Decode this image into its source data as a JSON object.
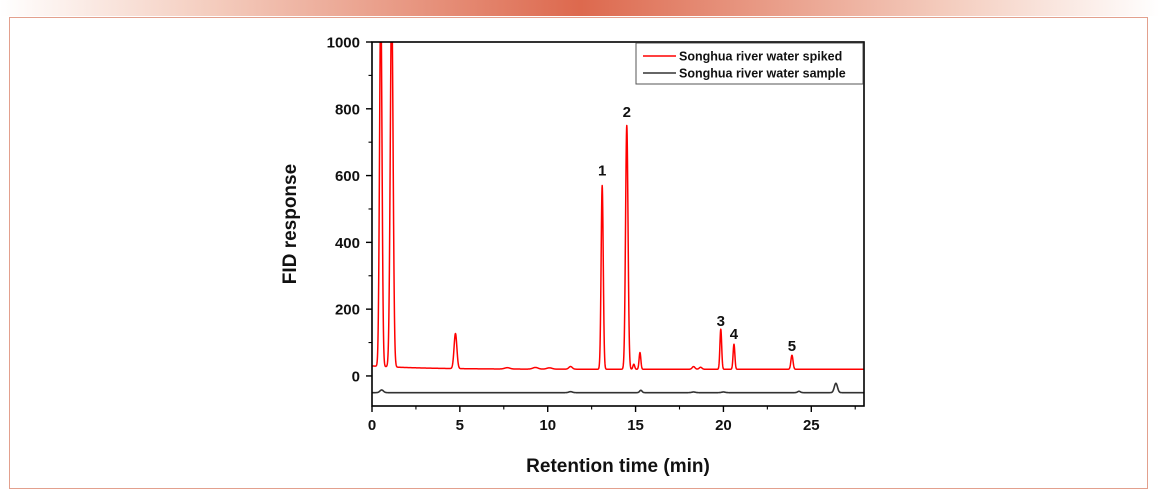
{
  "chart_data": {
    "type": "line",
    "title": "",
    "xlabel": "Retention time (min)",
    "ylabel": "FID response",
    "xlim": [
      0,
      28
    ],
    "ylim": [
      -90,
      1000
    ],
    "x_ticks": [
      0,
      5,
      10,
      15,
      20,
      25
    ],
    "y_ticks": [
      0,
      200,
      400,
      600,
      800,
      1000
    ],
    "grid": false,
    "legend_position": "top-right",
    "series": [
      {
        "name": "Songhua river water spiked",
        "color": "#ff0000",
        "baseline": 20,
        "baseline_start": 30,
        "peaks": [
          {
            "t": 0.5,
            "height": 1100,
            "width": 0.07
          },
          {
            "t": 1.12,
            "height": 1100,
            "width": 0.08
          },
          {
            "t": 4.75,
            "height": 105,
            "width": 0.08
          },
          {
            "t": 7.7,
            "height": 4,
            "width": 0.15
          },
          {
            "t": 9.3,
            "height": 5,
            "width": 0.15
          },
          {
            "t": 10.1,
            "height": 4,
            "width": 0.15
          },
          {
            "t": 11.3,
            "height": 8,
            "width": 0.1
          },
          {
            "t": 13.1,
            "height": 550,
            "width": 0.06
          },
          {
            "t": 14.5,
            "height": 730,
            "width": 0.07
          },
          {
            "t": 14.9,
            "height": 15,
            "width": 0.05
          },
          {
            "t": 15.25,
            "height": 50,
            "width": 0.05
          },
          {
            "t": 18.3,
            "height": 8,
            "width": 0.08
          },
          {
            "t": 18.7,
            "height": 6,
            "width": 0.08
          },
          {
            "t": 19.85,
            "height": 120,
            "width": 0.05
          },
          {
            "t": 20.6,
            "height": 75,
            "width": 0.05
          },
          {
            "t": 23.9,
            "height": 42,
            "width": 0.06
          }
        ]
      },
      {
        "name": "Songhua river water sample",
        "color": "#333333",
        "baseline": -50,
        "peaks": [
          {
            "t": 0.55,
            "height": 8,
            "width": 0.1
          },
          {
            "t": 11.3,
            "height": 3,
            "width": 0.1
          },
          {
            "t": 15.3,
            "height": 7,
            "width": 0.07
          },
          {
            "t": 18.3,
            "height": 2,
            "width": 0.1
          },
          {
            "t": 20.0,
            "height": 2,
            "width": 0.1
          },
          {
            "t": 24.3,
            "height": 4,
            "width": 0.08
          },
          {
            "t": 26.4,
            "height": 28,
            "width": 0.09
          }
        ]
      }
    ],
    "annotations": [
      {
        "text": "1",
        "x": 13.1,
        "y": 600
      },
      {
        "text": "2",
        "x": 14.5,
        "y": 775
      },
      {
        "text": "3",
        "x": 19.85,
        "y": 150
      },
      {
        "text": "4",
        "x": 20.6,
        "y": 110
      },
      {
        "text": "5",
        "x": 23.9,
        "y": 75
      }
    ]
  }
}
